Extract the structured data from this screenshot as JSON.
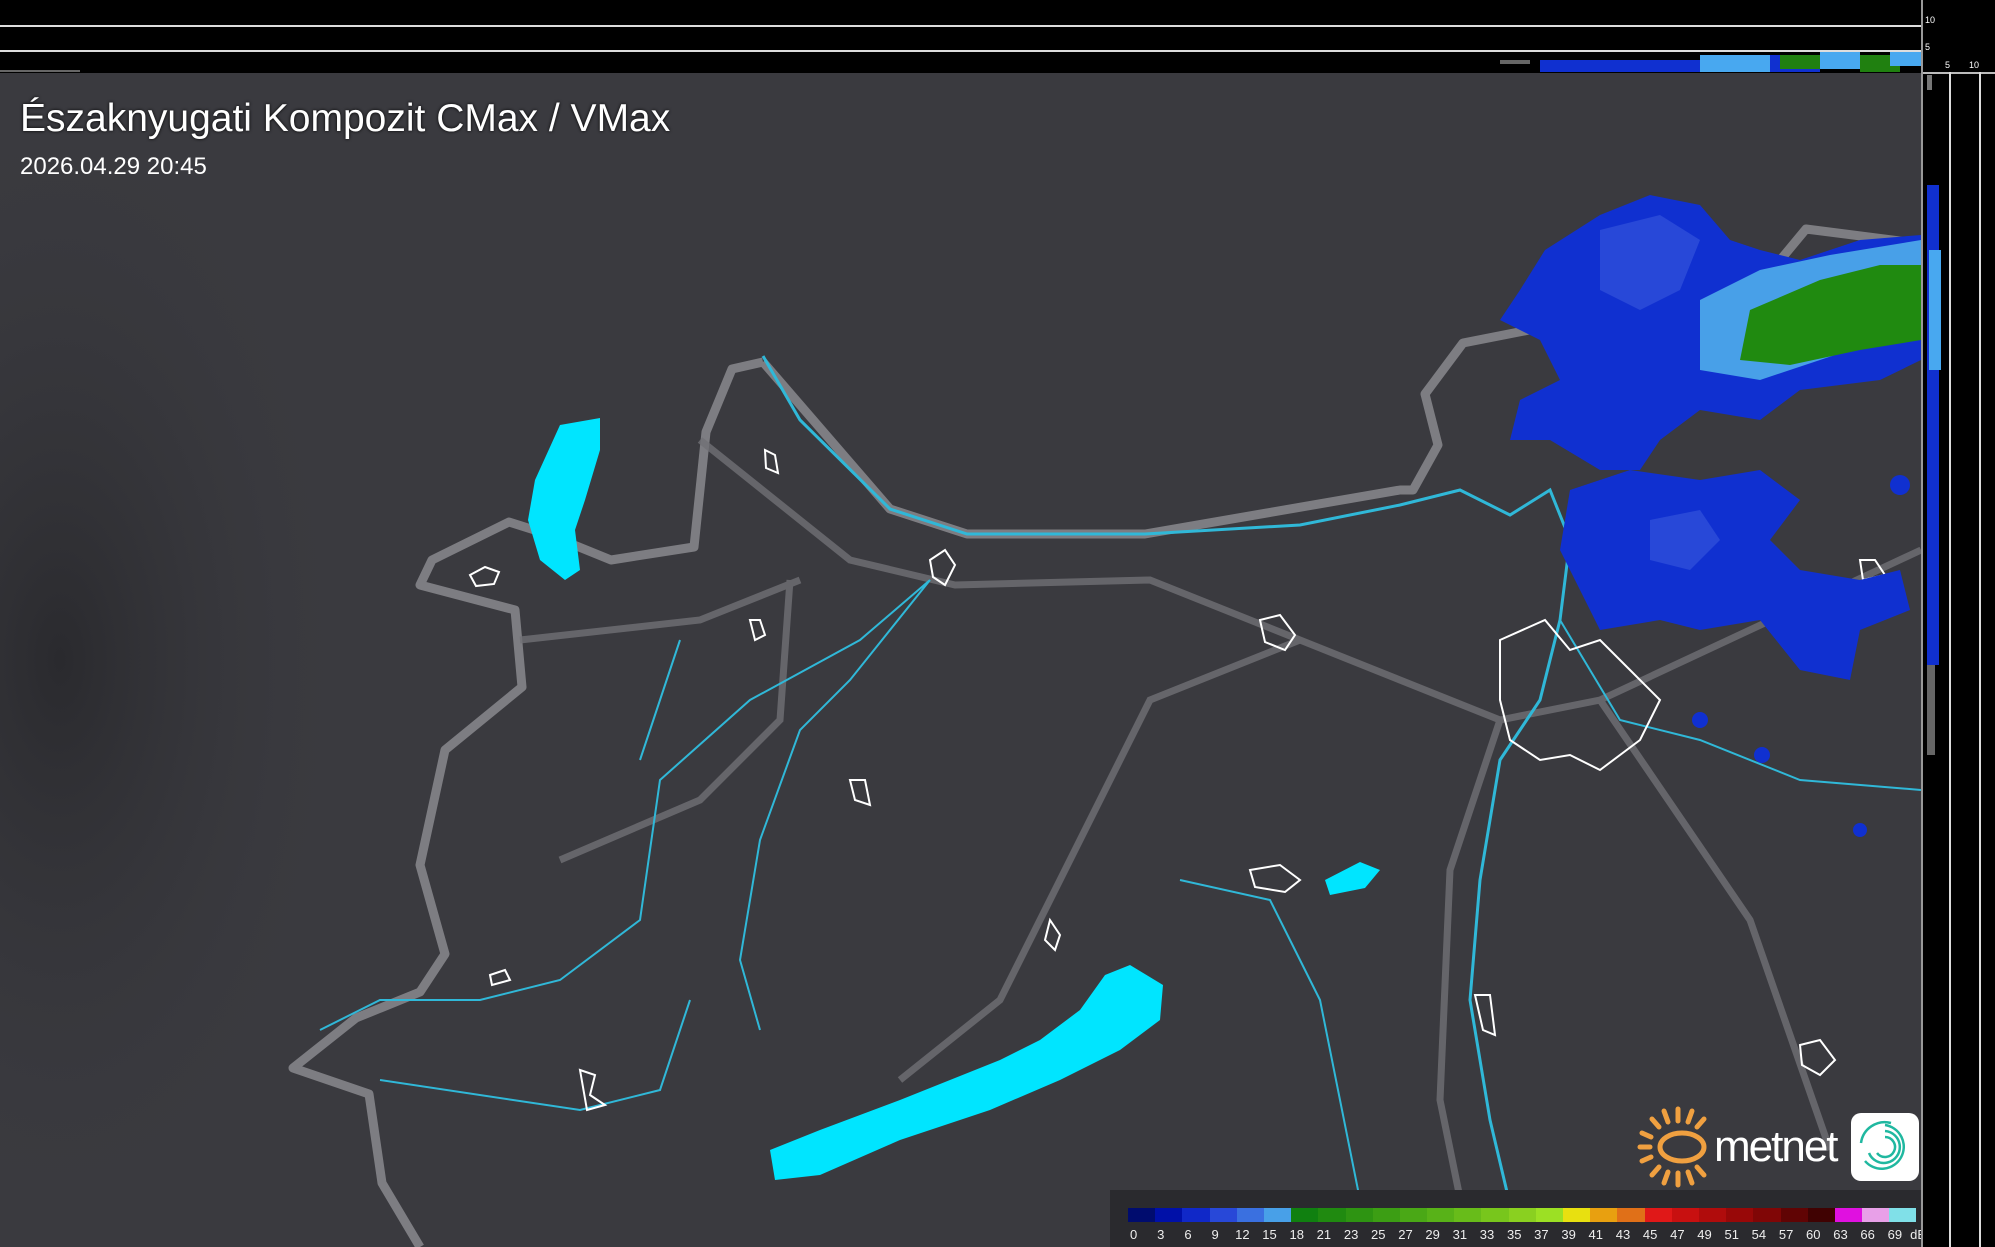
{
  "map": {
    "title": "Északnyugati Kompozit CMax / VMax",
    "timestamp": "2026.04.29 20:45"
  },
  "profile": {
    "top_axis_labels": [
      "10",
      "5"
    ],
    "side_axis_labels": [
      "5",
      "10"
    ]
  },
  "legend": {
    "unit": "dBZ",
    "values": [
      "0",
      "3",
      "6",
      "9",
      "12",
      "15",
      "18",
      "21",
      "23",
      "25",
      "27",
      "29",
      "31",
      "33",
      "35",
      "37",
      "39",
      "41",
      "43",
      "45",
      "47",
      "49",
      "51",
      "54",
      "57",
      "60",
      "63",
      "66",
      "69"
    ],
    "colors": [
      "#000c6e",
      "#0010a8",
      "#1028c8",
      "#2848d8",
      "#3a70e0",
      "#48a0e8",
      "#108010",
      "#208a10",
      "#2e9412",
      "#3c9e14",
      "#4aa816",
      "#58b218",
      "#68bc1a",
      "#78c61c",
      "#8ad020",
      "#9ce024",
      "#e8e010",
      "#e8a010",
      "#e07018",
      "#e01818",
      "#c81010",
      "#b00c0c",
      "#980808",
      "#800606",
      "#600404",
      "#400202",
      "#e010e0",
      "#e8a0e8",
      "#80e0e8"
    ]
  },
  "brand": {
    "name": "metnet"
  },
  "colors": {
    "water": "#00e5ff",
    "river": "#30b8d8",
    "border": "#8a8a8e",
    "radar_low": "#1030d0",
    "radar_mid": "#3a78e8",
    "radar_high": "#208a10"
  }
}
